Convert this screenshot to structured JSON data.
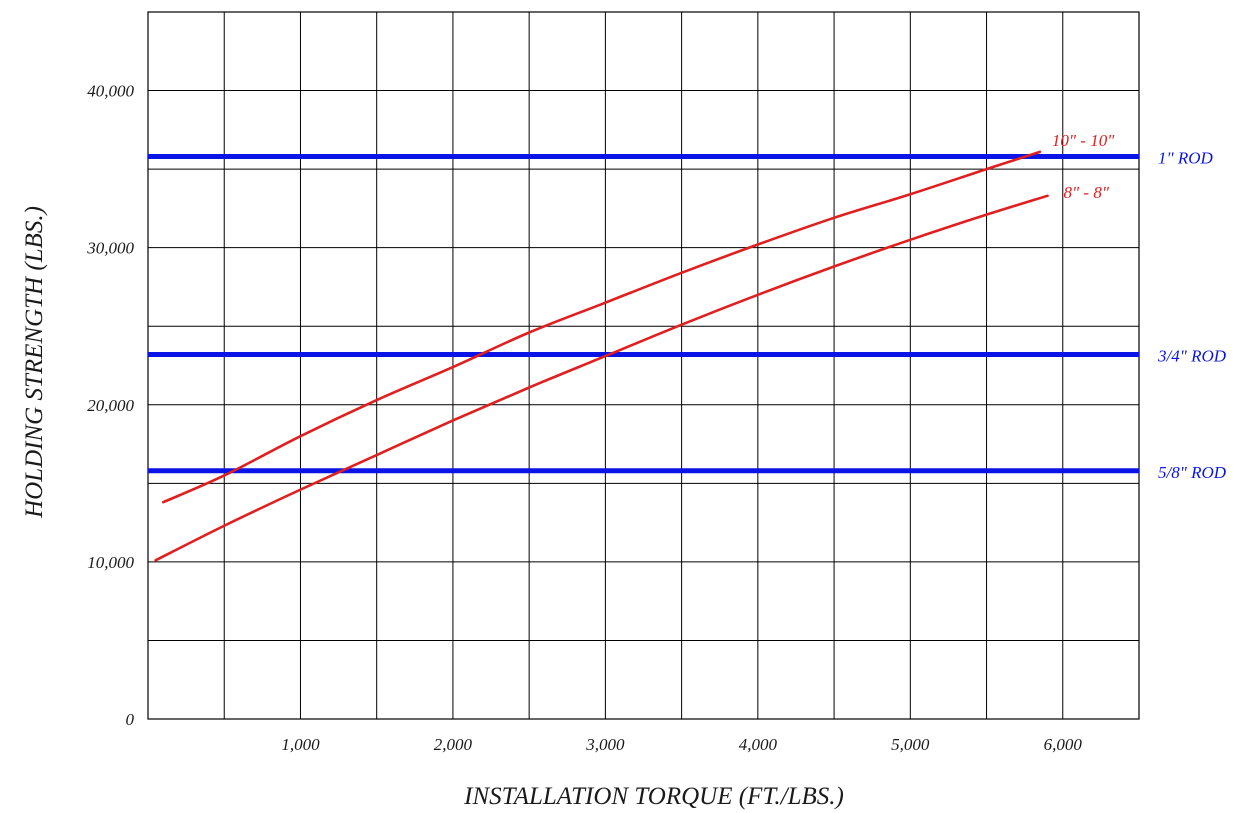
{
  "chart_data": {
    "type": "line",
    "title": "",
    "xlabel": "INSTALLATION TORQUE (FT./LBS.)",
    "ylabel": "HOLDING STRENGTH (LBS.)",
    "xlim": [
      0,
      6500
    ],
    "ylim": [
      0,
      45000
    ],
    "x_grid_step": 500,
    "y_grid_step": 5000,
    "x_ticks": [
      {
        "value": 1000,
        "label": "1,000"
      },
      {
        "value": 2000,
        "label": "2,000"
      },
      {
        "value": 3000,
        "label": "3,000"
      },
      {
        "value": 4000,
        "label": "4,000"
      },
      {
        "value": 5000,
        "label": "5,000"
      },
      {
        "value": 6000,
        "label": "6,000"
      }
    ],
    "y_ticks": [
      {
        "value": 0,
        "label": "0"
      },
      {
        "value": 10000,
        "label": "10,000"
      },
      {
        "value": 20000,
        "label": "20,000"
      },
      {
        "value": 30000,
        "label": "30,000"
      },
      {
        "value": 40000,
        "label": "40,000"
      }
    ],
    "grid": true,
    "series": [
      {
        "name": "10\" - 10\"",
        "color": "#e02020",
        "x": [
          100,
          500,
          1000,
          1500,
          2000,
          2500,
          3000,
          3500,
          4000,
          4500,
          5000,
          5500,
          5850
        ],
        "y": [
          13800,
          15500,
          18000,
          20300,
          22400,
          24600,
          26500,
          28400,
          30200,
          31900,
          33400,
          35000,
          36100
        ]
      },
      {
        "name": "8\" - 8\"",
        "color": "#e02020",
        "x": [
          50,
          500,
          1000,
          1500,
          2000,
          2500,
          3000,
          3500,
          4000,
          4500,
          5000,
          5500,
          5900
        ],
        "y": [
          10100,
          12300,
          14600,
          16800,
          19000,
          21100,
          23100,
          25100,
          27000,
          28800,
          30500,
          32100,
          33300
        ]
      }
    ],
    "reference_lines": [
      {
        "label": "1\" ROD",
        "value": 35800,
        "color": "#0a14e6"
      },
      {
        "label": "3/4\" ROD",
        "value": 23200,
        "color": "#0a14e6"
      },
      {
        "label": "5/8\" ROD",
        "value": 15800,
        "color": "#0a14e6"
      }
    ]
  }
}
